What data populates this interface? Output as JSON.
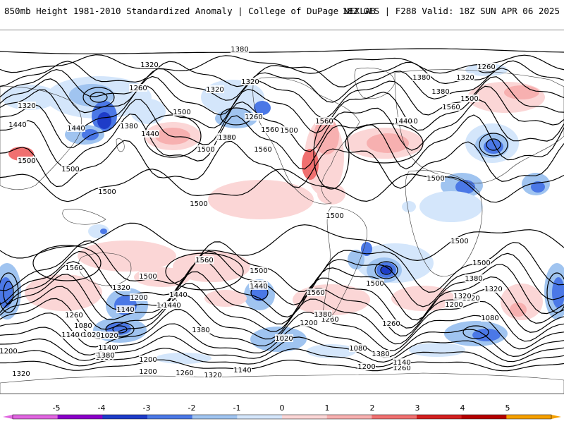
{
  "header": {
    "title": "850mb Height 1981-2010 Standardized Anomaly | College of DuPage NEXLAB",
    "run_info": "18Z GFS | F288 Valid: 18Z SUN APR 06 2025"
  },
  "colors": {
    "neg5": "#e066e0",
    "neg4": "#8a00c8",
    "neg3": "#1e3cc8",
    "neg2": "#4b78e6",
    "neg1": "#a0c4f0",
    "neg05": "#d4e6fb",
    "zero": "#ffffff",
    "pos05": "#fbd6d6",
    "pos1": "#f7b0b0",
    "pos2": "#f07070",
    "pos3": "#d22020",
    "pos4": "#b40000",
    "pos5": "#f5a000"
  },
  "contour_labels": [
    "1380",
    "1320",
    "1260",
    "1320",
    "1320",
    "1380",
    "1320",
    "1260",
    "1440",
    "1380",
    "1440",
    "1320",
    "1500",
    "1260",
    "1500",
    "1440",
    "1380",
    "1440",
    "1560",
    "1380",
    "1500",
    "1380",
    "1440",
    "1560",
    "1560",
    "1500",
    "1500",
    "1500",
    "1500",
    "1500",
    "1500",
    "1500",
    "1500",
    "1500",
    "1500",
    "1560",
    "1560",
    "1500",
    "1500",
    "1440",
    "1380",
    "1320",
    "1560",
    "1500",
    "1440",
    "1320",
    "1200",
    "1440",
    "1140",
    "1380",
    "1260",
    "1320",
    "1200",
    "1260",
    "1080",
    "1140",
    "1020",
    "1380",
    "1260",
    "1200",
    "1320",
    "1320",
    "1260",
    "1200",
    "1140",
    "1080",
    "1020",
    "1200",
    "1080",
    "1140",
    "1020",
    "1080",
    "1200",
    "1140",
    "1260",
    "1380",
    "1440",
    "1500",
    "1560",
    "1380",
    "1320",
    "1260",
    "1200",
    "1140"
  ],
  "colorbar": {
    "ticks": [
      "-5",
      "-4",
      "-3",
      "-2",
      "-1",
      "0",
      "1",
      "2",
      "3",
      "4",
      "5"
    ]
  }
}
